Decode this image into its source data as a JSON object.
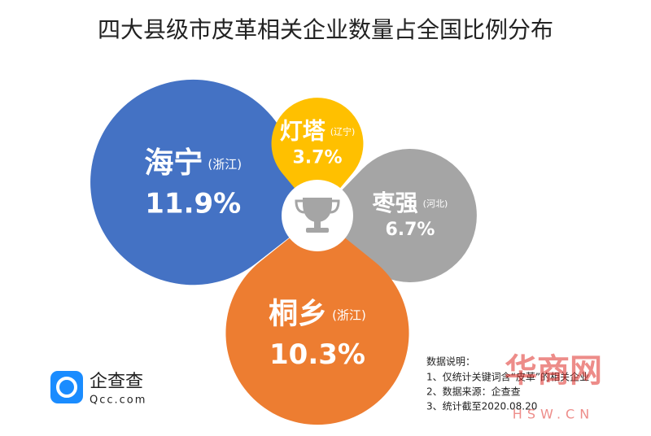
{
  "chart_data": {
    "type": "petal",
    "title": "四大县级市皮革相关企业数量占全国比例分布",
    "categories": [
      "海宁",
      "灯塔",
      "枣强",
      "桐乡"
    ],
    "regions": [
      "(浙江)",
      "(辽宁)",
      "(河北)",
      "(浙江)"
    ],
    "values": [
      11.9,
      3.7,
      6.7,
      10.3
    ],
    "value_labels": [
      "11.9%",
      "3.7%",
      "6.7%",
      "10.3%"
    ],
    "colors": [
      "#4472c4",
      "#ffc000",
      "#a5a5a5",
      "#ed7d31"
    ]
  },
  "notes": {
    "title": "数据说明：",
    "items": [
      "1、仅统计关键词含“皮革”的相关企业",
      "2、数据来源：企查查",
      "3、统计截至2020.08.20"
    ]
  },
  "logo": {
    "name": "企查查",
    "url": "Qcc.com"
  },
  "watermark": {
    "name": "华商网",
    "url": "HSW.CN"
  }
}
